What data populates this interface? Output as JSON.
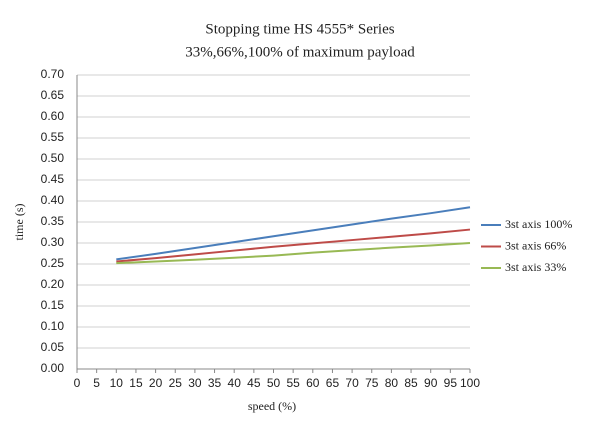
{
  "chart_data": {
    "type": "line",
    "title": "Stopping time HS 4555* Series",
    "subtitle": "33%,66%,100% of maximum payload",
    "x_label": "speed (%)",
    "y_label": "time (s)",
    "x": [
      10,
      20,
      30,
      40,
      50,
      60,
      70,
      80,
      90,
      100
    ],
    "series": [
      {
        "name": "3st axis 100%",
        "color": "#4a7ebb",
        "values": [
          0.261,
          0.274,
          0.288,
          0.302,
          0.316,
          0.33,
          0.344,
          0.358,
          0.371,
          0.385
        ]
      },
      {
        "name": "3st axis 66%",
        "color": "#be4b48",
        "values": [
          0.256,
          0.264,
          0.273,
          0.282,
          0.291,
          0.299,
          0.307,
          0.315,
          0.323,
          0.332
        ]
      },
      {
        "name": "3st axis 33%",
        "color": "#98b954",
        "values": [
          0.252,
          0.256,
          0.26,
          0.265,
          0.27,
          0.277,
          0.283,
          0.289,
          0.294,
          0.3
        ]
      }
    ],
    "xlim": [
      0,
      100
    ],
    "xticks": [
      0,
      5,
      10,
      15,
      20,
      25,
      30,
      35,
      40,
      45,
      50,
      55,
      60,
      65,
      70,
      75,
      80,
      85,
      90,
      95,
      100
    ],
    "ylim": [
      0,
      0.7
    ],
    "yticks": [
      {
        "value": 0,
        "label": "0.00"
      },
      {
        "value": 0.05,
        "label": "0.05"
      },
      {
        "value": 0.1,
        "label": "0.10"
      },
      {
        "value": 0.15,
        "label": "0.15"
      },
      {
        "value": 0.2,
        "label": "0.20"
      },
      {
        "value": 0.25,
        "label": "0.25"
      },
      {
        "value": 0.3,
        "label": "0.30"
      },
      {
        "value": 0.35,
        "label": "0.35"
      },
      {
        "value": 0.4,
        "label": "0.40"
      },
      {
        "value": 0.45,
        "label": "0.45"
      },
      {
        "value": 0.5,
        "label": "0.50"
      },
      {
        "value": 0.55,
        "label": "0.55"
      },
      {
        "value": 0.6,
        "label": "0.60"
      },
      {
        "value": 0.65,
        "label": "0.65"
      },
      {
        "value": 0.7,
        "label": "0.70"
      }
    ],
    "grid": true,
    "legend": "right"
  }
}
